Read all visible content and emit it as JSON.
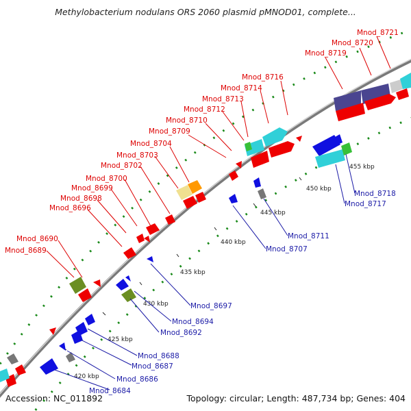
{
  "title": "Methylobacterium nodulans ORS 2060 plasmid pMNOD01, complete...",
  "accession": "Accession: NC_011892",
  "summary": "Topology: circular; Length: 487,734 bp; Genes: 404",
  "colors": {
    "forward_label": "#dd0000",
    "reverse_label": "#1a1aa6",
    "backbone": "#909090",
    "gc_dots": "#1a8a1a",
    "cds_red": "#ee0000",
    "cds_blue": "#1010e0",
    "cds_cyan": "#30d0d8",
    "cds_olive": "#6b8e23",
    "cds_navy": "#4a4590",
    "cds_gray": "#777777",
    "cds_orange": "#ff9900",
    "cds_tan": "#f0e090"
  },
  "tick_labels": [
    "420 kbp",
    "425 kbp",
    "430 kbp",
    "435 kbp",
    "440 kbp",
    "445 kbp",
    "450 kbp",
    "455 kbp"
  ],
  "forward_genes": [
    "Mnod_8689",
    "Mnod_8690",
    "Mnod_8696",
    "Mnod_8698",
    "Mnod_8699",
    "Mnod_8700",
    "Mnod_8702",
    "Mnod_8703",
    "Mnod_8704",
    "Mnod_8709",
    "Mnod_8710",
    "Mnod_8712",
    "Mnod_8713",
    "Mnod_8714",
    "Mnod_8716",
    "Mnod_8719",
    "Mnod_8720",
    "Mnod_8721"
  ],
  "reverse_genes": [
    "Mnod_8684",
    "Mnod_8686",
    "Mnod_8687",
    "Mnod_8688",
    "Mnod_8692",
    "Mnod_8694",
    "Mnod_8697",
    "Mnod_8707",
    "Mnod_8711",
    "Mnod_8717",
    "Mnod_8718"
  ]
}
